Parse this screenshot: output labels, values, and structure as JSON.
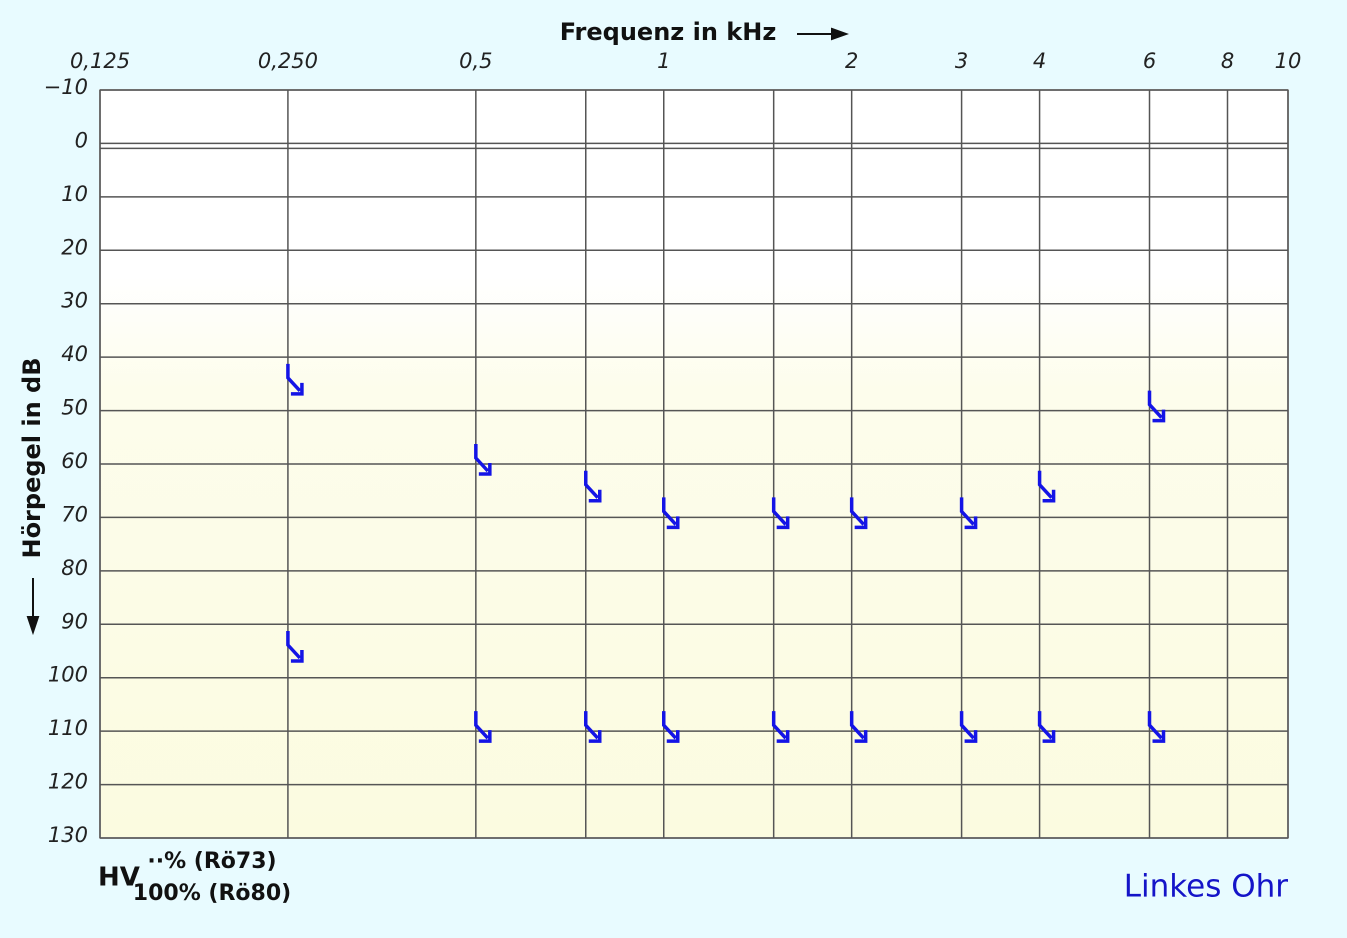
{
  "chart_data": {
    "type": "scatter",
    "title": "Frequenz in kHz",
    "y_label": "Hörpegel in dB",
    "x_scale": "log",
    "xlim": [
      0.125,
      10
    ],
    "xticks": [
      {
        "value": 0.125,
        "label": "0,125"
      },
      {
        "value": 0.25,
        "label": "0,250"
      },
      {
        "value": 0.5,
        "label": "0,5"
      },
      1,
      2,
      3,
      4,
      6,
      8,
      10
    ],
    "minor_xticks": [
      0.75,
      1.5
    ],
    "ylim": [
      -10,
      130
    ],
    "y_inverted": true,
    "yticks": [
      {
        "value": -10,
        "label": "−10"
      },
      0,
      10,
      20,
      30,
      40,
      50,
      60,
      70,
      80,
      90,
      100,
      110,
      120,
      130
    ],
    "grid": true,
    "series": [
      {
        "color": "#1414e6",
        "x": [
          0.25,
          0.5,
          0.75,
          1,
          1.5,
          2,
          3,
          4,
          6
        ],
        "values": [
          45,
          60,
          65,
          70,
          70,
          70,
          70,
          65,
          50
        ]
      },
      {
        "color": "#1414e6",
        "x": [
          0.25,
          0.5,
          0.75,
          1,
          1.5,
          2,
          3,
          4,
          6
        ],
        "values": [
          95,
          110,
          110,
          110,
          110,
          110,
          110,
          110,
          110
        ]
      }
    ],
    "annotations": {
      "hv": "HV",
      "hv_top": "··% (Rö73)",
      "hv_bottom": "100% (Rö80)",
      "ear": "Linkes Ohr"
    }
  }
}
